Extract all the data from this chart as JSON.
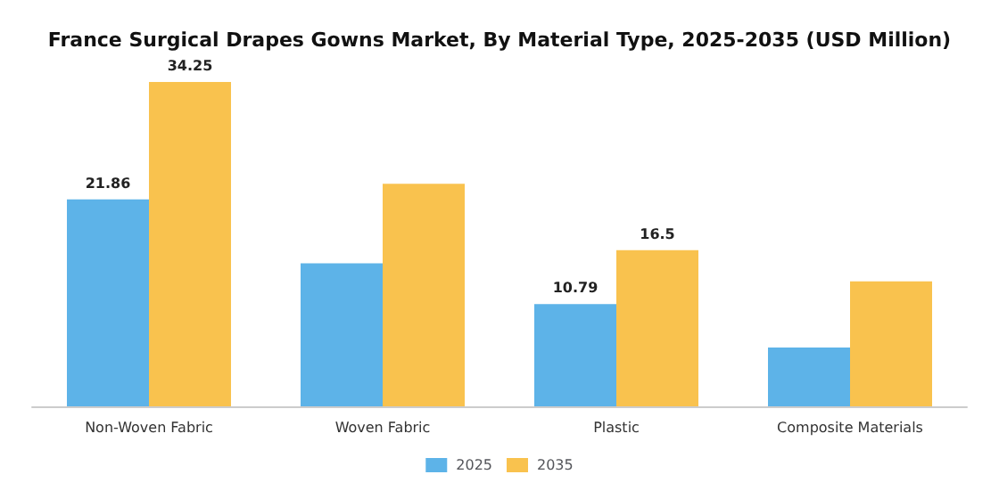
{
  "chart_data": {
    "type": "bar",
    "title": "France Surgical Drapes Gowns Market, By Material Type, 2025-2035 (USD Million)",
    "categories": [
      "Non-Woven Fabric",
      "Woven Fabric",
      "Plastic",
      "Composite Materials"
    ],
    "series": [
      {
        "name": "2025",
        "color": "#5db3e8",
        "values": [
          21.86,
          15.1,
          10.79,
          6.2
        ],
        "value_labels": [
          "21.86",
          null,
          "10.79",
          null
        ]
      },
      {
        "name": "2035",
        "color": "#f9c24e",
        "values": [
          34.25,
          23.5,
          16.5,
          13.2
        ],
        "value_labels": [
          "34.25",
          null,
          "16.5",
          null
        ]
      }
    ],
    "legend": "bottom"
  }
}
